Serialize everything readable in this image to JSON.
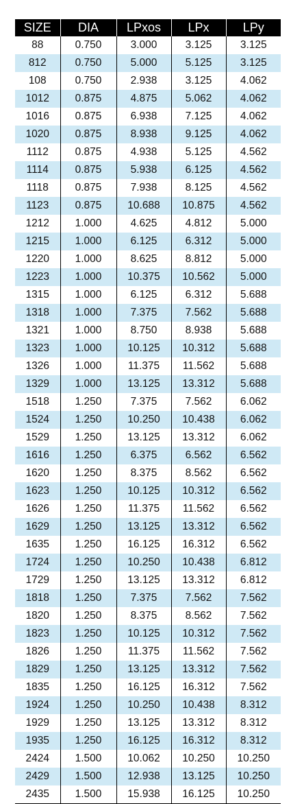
{
  "colors": {
    "header_bg": "#000000",
    "header_text": "#ffffff",
    "alt_row_bg": "#cfe9f5",
    "row_bg": "#ffffff",
    "grid_line": "#000000"
  },
  "table": {
    "headers": [
      "SIZE",
      "DIA",
      "LPxos",
      "LPx",
      "LPy"
    ],
    "rows": [
      [
        "88",
        "0.750",
        "3.000",
        "3.125",
        "3.125"
      ],
      [
        "812",
        "0.750",
        "5.000",
        "5.125",
        "3.125"
      ],
      [
        "108",
        "0.750",
        "2.938",
        "3.125",
        "4.062"
      ],
      [
        "1012",
        "0.875",
        "4.875",
        "5.062",
        "4.062"
      ],
      [
        "1016",
        "0.875",
        "6.938",
        "7.125",
        "4.062"
      ],
      [
        "1020",
        "0.875",
        "8.938",
        "9.125",
        "4.062"
      ],
      [
        "1112",
        "0.875",
        "4.938",
        "5.125",
        "4.562"
      ],
      [
        "1114",
        "0.875",
        "5.938",
        "6.125",
        "4.562"
      ],
      [
        "1118",
        "0.875",
        "7.938",
        "8.125",
        "4.562"
      ],
      [
        "1123",
        "0.875",
        "10.688",
        "10.875",
        "4.562"
      ],
      [
        "1212",
        "1.000",
        "4.625",
        "4.812",
        "5.000"
      ],
      [
        "1215",
        "1.000",
        "6.125",
        "6.312",
        "5.000"
      ],
      [
        "1220",
        "1.000",
        "8.625",
        "8.812",
        "5.000"
      ],
      [
        "1223",
        "1.000",
        "10.375",
        "10.562",
        "5.000"
      ],
      [
        "1315",
        "1.000",
        "6.125",
        "6.312",
        "5.688"
      ],
      [
        "1318",
        "1.000",
        "7.375",
        "7.562",
        "5.688"
      ],
      [
        "1321",
        "1.000",
        "8.750",
        "8.938",
        "5.688"
      ],
      [
        "1323",
        "1.000",
        "10.125",
        "10.312",
        "5.688"
      ],
      [
        "1326",
        "1.000",
        "11.375",
        "11.562",
        "5.688"
      ],
      [
        "1329",
        "1.000",
        "13.125",
        "13.312",
        "5.688"
      ],
      [
        "1518",
        "1.250",
        "7.375",
        "7.562",
        "6.062"
      ],
      [
        "1524",
        "1.250",
        "10.250",
        "10.438",
        "6.062"
      ],
      [
        "1529",
        "1.250",
        "13.125",
        "13.312",
        "6.062"
      ],
      [
        "1616",
        "1.250",
        "6.375",
        "6.562",
        "6.562"
      ],
      [
        "1620",
        "1.250",
        "8.375",
        "8.562",
        "6.562"
      ],
      [
        "1623",
        "1.250",
        "10.125",
        "10.312",
        "6.562"
      ],
      [
        "1626",
        "1.250",
        "11.375",
        "11.562",
        "6.562"
      ],
      [
        "1629",
        "1.250",
        "13.125",
        "13.312",
        "6.562"
      ],
      [
        "1635",
        "1.250",
        "16.125",
        "16.312",
        "6.562"
      ],
      [
        "1724",
        "1.250",
        "10.250",
        "10.438",
        "6.812"
      ],
      [
        "1729",
        "1.250",
        "13.125",
        "13.312",
        "6.812"
      ],
      [
        "1818",
        "1.250",
        "7.375",
        "7.562",
        "7.562"
      ],
      [
        "1820",
        "1.250",
        "8.375",
        "8.562",
        "7.562"
      ],
      [
        "1823",
        "1.250",
        "10.125",
        "10.312",
        "7.562"
      ],
      [
        "1826",
        "1.250",
        "11.375",
        "11.562",
        "7.562"
      ],
      [
        "1829",
        "1.250",
        "13.125",
        "13.312",
        "7.562"
      ],
      [
        "1835",
        "1.250",
        "16.125",
        "16.312",
        "7.562"
      ],
      [
        "1924",
        "1.250",
        "10.250",
        "10.438",
        "8.312"
      ],
      [
        "1929",
        "1.250",
        "13.125",
        "13.312",
        "8.312"
      ],
      [
        "1935",
        "1.250",
        "16.125",
        "16.312",
        "8.312"
      ],
      [
        "2424",
        "1.500",
        "10.062",
        "10.250",
        "10.250"
      ],
      [
        "2429",
        "1.500",
        "12.938",
        "13.125",
        "10.250"
      ],
      [
        "2435",
        "1.500",
        "15.938",
        "16.125",
        "10.250"
      ]
    ]
  }
}
